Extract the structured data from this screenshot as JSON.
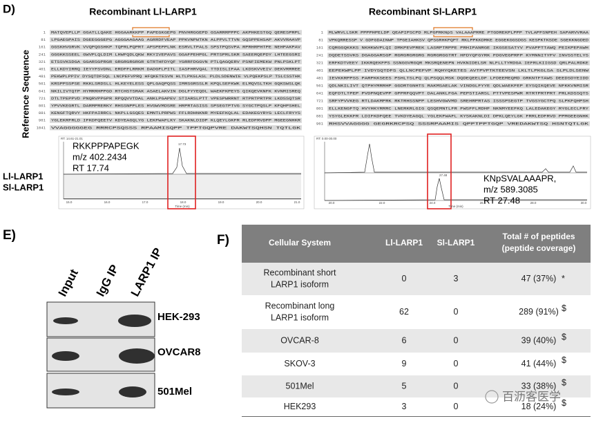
{
  "panel_d": {
    "label": "D)",
    "left_title": "Recombinant Ll-LARP1",
    "right_title": "Recombinant Sl-LARP1",
    "side_label": "Reference Sequence",
    "left_sequence": [
      {
        "num": "1",
        "seq": "MATQVEPLLP GGATLLQAKE HGGAARKKPP PAPEGKGEPG PNVHRGGEPD GSARRRPPPC AKPHKESTGQ QERESPRPL"
      },
      {
        "num": "81",
        "seq": "LPGAEGPAIS DGEEGGGEPG AGGGAAGAAG AGRRDFVEAP PPKVNPWTKN ALPPVLTTVN GQSPPEHSAP AKVVRAAVP"
      },
      {
        "num": "161",
        "seq": "GGSKHVGRVK VVQPQGSHKP TQPRLPQPRT APSPEPPLNK ESRVLTPALS SPSTPQSVPA RPRHRPHTPE NEHPAKPAV"
      },
      {
        "num": "241",
        "seq": "GGGKKSSEEL GWVPLQLDIM LHWFQDLQKW RKYIVEPAVS GGAFPEHPGL PRTSPRLSKR SAEERQEPDY LHTEEGSRI"
      },
      {
        "num": "321",
        "seq": "ETSSVKSDGA GGARSGPRGR GRGRGRGRGR GTRTHFDYQF YGRRFDGGVN PTLQAGQERV PSNFIEMEKW PNLPSKLPT"
      },
      {
        "num": "401",
        "seq": "ELLKDYIRRQ IEYYFSVDNL ERDFFLRRKM DADGFLPITL IASFHRVQAL TTDISLIFAA LKDSKVVEIV DEKVRRREE"
      },
      {
        "num": "481",
        "seq": "PEKWPLPPIV DYSQTDFSQL LNCPEFVPRQ HFQKETESVN HLTLPKGLASL PLDLSDENWIE VLPQEKPSLP TSLCSSTHK"
      },
      {
        "num": "561",
        "seq": "KRSPPSSPSE RKKLSRDSLL HLKEYELESS QPLGAQPQSS IMRSGRSSLR KPQLSEFKWK ELMQVSLTKH GQKSWSLQK"
      },
      {
        "num": "641",
        "seq": "NKILIVTQTP HYMRRHPPGD RTCHSTSRAK ASAELAKVIN DGLFYYEQDL WAEKFKPEYS QIKQEVKNFK KVNMISREQ"
      },
      {
        "num": "721",
        "seq": "DTLTPEPPVD PNQRVPPGPR RPQQVVTDAL ANKLPGAPEV STIARSLPTT VPESPWRRNT RTPRTPRTPR LKDSSQTSR"
      },
      {
        "num": "801",
        "seq": "YPVVKEGRTL DARMPRERKY RHSSNPPLES HVGWVMDSRE HRPRTASISS SPSEGTPTVG SYGCTPQSLP KFQHPSHEL"
      },
      {
        "num": "881",
        "seq": "KENGFTQRVY HKFPAIRRCL NKPLLGSQES EMNTLPRPWS FFLRDHNKNR MYEEFKQLAL EDAKEGYRYG LECLFRYYS"
      },
      {
        "num": "961",
        "seq": "YGLEKRFRLD IFKDFQEETV KDYEAGQLYG LEKFWAFLKY SKAKNLDIDP KLQEYLGKFR RLEDFRVDPP MGEEGNHKR"
      },
      {
        "num": "1041",
        "seq": "VVAGGGGGEG RRRCPSQSSS RPAAMISQPP TPPTGQPVRE DAKWTSQHSN TQTLGK"
      }
    ],
    "right_sequence": [
      {
        "num": "1",
        "seq": "MLWRVLLSKR PPPPHPELDP QEAPIPSCPD RLPGPRKNpS VALAAAPRRE PTGDREKPLPPP TVLAPFSNPEH SAPARVVRAA"
      },
      {
        "num": "81",
        "seq": "VPKQRRESSP V GDFGDAINWP TPGEIAHKSV QPSGRHKPQPT RKLPPKKDMKE EGGEKGGSDGS KESPKTKSDE SGEKKNGDED"
      },
      {
        "num": "161",
        "seq": "CQRGGQKKKS NKHKWVPLQI DMKPEVPREK LASRPTRPPE PRHIPANRGE IKGSESATYV PVAPPTTAWQ PEIKPEPAWH"
      },
      {
        "num": "241",
        "seq": "DQDETSSVKS DGAGGARSGP RGRGRGRGRG RGRGRGGTRT HFDYQFGYRK FDGVEGPRFP KYMNNITYFV INVSSTELYS"
      },
      {
        "num": "321",
        "seq": "ERFKDTVEEY IKKRQEKFPS SSNGGVRGQR MKSRQENEPN HVKNIDELSR NLFLLTYRDGA IEFRLKIIGSD QRLPALRDKE"
      },
      {
        "num": "401",
        "seq": "EEPEKWPLPP IVDYSQTDFS QLLNCPEFVP RQHYQKETES AVTPVPTKTEEVSN LKLTLPKGLSA SLPLDLSENW"
      },
      {
        "num": "481",
        "seq": "IEVKKRPPSS PARPKKSEES PSHLTSLPQ QLPSQQLMSK DQDEQEELDF LFDEEMEQMD GRKNTFTAWS DEEDSDYEIDD"
      },
      {
        "num": "561",
        "seq": "QDLNKILIVT QTPHYMRRHP GGDRTGNHTS RAKMSAELAK VINDGLFYYE QDLWAEKFEP EYSQIKQEVE NFKKVNMISR"
      },
      {
        "num": "641",
        "seq": "EQFDTLTPEP PVDPNQEVPP GPPRFQQVPT DALANKLFGA PEPSTIARSL PTTVPESPWR RTRTPRTPRT PRLKDSSQTS"
      },
      {
        "num": "721",
        "seq": "SRFYPVVKEG RTLDAKMPRK RKTRHSSNPP LESHVGWVMD SREHRPRTAS ISSSPSEGTP TVGSYGCTPQ SLPKFQHPSH"
      },
      {
        "num": "801",
        "seq": "ELLKENGFTQ HVYHKYRRRC LNERKRLGIG QSQEMNTLFR FWSFFLRDHF NKNMYEEFKQ LALEDAKEGY RYGLECLFRY"
      },
      {
        "num": "881",
        "seq": "YSYGLEKKFR LDIFKDFQEE TVKDYEAGQL YGLEKFWAFL KYSKAKNLDI DPKLQEYLGK FRRLEDFRVD PPMGEEGNHK"
      },
      {
        "num": "961",
        "seq": "RHSVVAGGGG GEGRKRCPSQ SSSRPAAMIS QPPTPPTGQP VREDAKWTSQ HSNTQTLGK"
      }
    ],
    "left_chrom": {
      "rt_header": "RT: 14.61-21.01",
      "peptide": "RKKPPPAPEGK",
      "mz": "m/z 402.2434",
      "rt": "RT 17.74",
      "peak_label": "17.73",
      "x_ticks": [
        "15.0",
        "16.0",
        "17.0",
        "18.0",
        "19.0",
        "20.0",
        "21.0"
      ],
      "x_title": "Time (min)"
    },
    "right_chrom": {
      "rt_header": "RT: 0.00-30.00",
      "peptide": "KNpSVALAAAPR,",
      "mz": "m/z 589.3085",
      "rt": "RT 27.48",
      "peak_label": "27.48",
      "x_ticks": [
        "20.0",
        "22.0",
        "24.0",
        "26.0",
        "28.0",
        "30.0"
      ],
      "x_title": "Time (min)"
    },
    "row_labels": [
      "Ll-LARP1",
      "Sl-LARP1"
    ]
  },
  "panel_e": {
    "label": "E)",
    "lanes": [
      "Input",
      "IgG IP",
      "LARP1 IP"
    ],
    "blots": [
      "HEK-293",
      "OVCAR8",
      "501Mel"
    ]
  },
  "panel_f": {
    "label": "F)",
    "header": [
      "Cellular System",
      "Ll-LARP1",
      "Sl-LARP1",
      "Total # of peptides",
      "(peptide coverage)"
    ],
    "rows": [
      {
        "system": [
          "Recombinant short",
          "LARP1 isoform"
        ],
        "ll": "0",
        "sl": "3",
        "total": "47 (37%)",
        "mark": "*"
      },
      {
        "system": [
          "Recombinant long",
          "LARP1 isoform"
        ],
        "ll": "62",
        "sl": "0",
        "total": "289 (91%)",
        "mark": "$"
      },
      {
        "system": [
          "OVCAR-8"
        ],
        "ll": "6",
        "sl": "0",
        "total": "39 (40%)",
        "mark": "$"
      },
      {
        "system": [
          "SKOV-3"
        ],
        "ll": "9",
        "sl": "0",
        "total": "41 (44%)",
        "mark": "$"
      },
      {
        "system": [
          "501Mel"
        ],
        "ll": "5",
        "sl": "0",
        "total": "33 (38%)",
        "mark": "$"
      },
      {
        "system": [
          "HEK293"
        ],
        "ll": "3",
        "sl": "0",
        "total": "18 (24%)",
        "mark": "$"
      }
    ]
  },
  "watermark": "百沥客医学"
}
